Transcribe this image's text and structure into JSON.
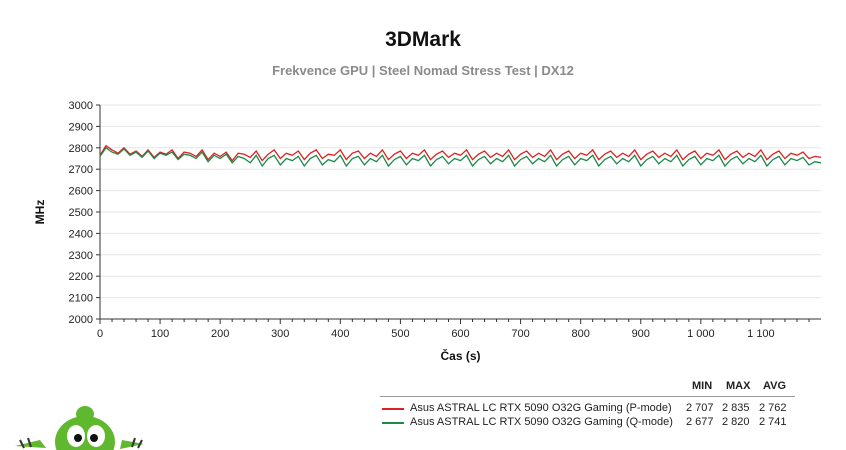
{
  "chart_data": {
    "type": "line",
    "title": "3DMark",
    "subtitle": "Frekvence GPU | Steel Nomad Stress Test | DX12",
    "xlabel": "Čas (s)",
    "ylabel": "MHz",
    "xlim": [
      0,
      1200
    ],
    "ylim": [
      2000,
      3000
    ],
    "xticks": [
      0,
      100,
      200,
      300,
      400,
      500,
      600,
      700,
      800,
      900,
      1000,
      1100
    ],
    "xtick_labels": [
      "0",
      "100",
      "200",
      "300",
      "400",
      "500",
      "600",
      "700",
      "800",
      "900",
      "1 000",
      "1 100"
    ],
    "yticks": [
      2000,
      2100,
      2200,
      2300,
      2400,
      2500,
      2600,
      2700,
      2800,
      2900,
      3000
    ],
    "grid": "horizontal",
    "legend_position": "bottom-right",
    "legend_headers": [
      "MIN",
      "MAX",
      "AVG"
    ],
    "series": [
      {
        "name": "Asus ASTRAL LC RTX 5090 O32G Gaming (P-mode)",
        "color": "#e02020",
        "min": "2 707",
        "max": "2 835",
        "avg": "2 762",
        "x": [
          0,
          10,
          20,
          30,
          40,
          50,
          60,
          70,
          80,
          90,
          100,
          110,
          120,
          130,
          140,
          150,
          160,
          170,
          180,
          190,
          200,
          210,
          220,
          230,
          240,
          250,
          260,
          270,
          280,
          290,
          300,
          310,
          320,
          330,
          340,
          350,
          360,
          370,
          380,
          390,
          400,
          410,
          420,
          430,
          440,
          450,
          460,
          470,
          480,
          490,
          500,
          510,
          520,
          530,
          540,
          550,
          560,
          570,
          580,
          590,
          600,
          610,
          620,
          630,
          640,
          650,
          660,
          670,
          680,
          690,
          700,
          710,
          720,
          730,
          740,
          750,
          760,
          770,
          780,
          790,
          800,
          810,
          820,
          830,
          840,
          850,
          860,
          870,
          880,
          890,
          900,
          910,
          920,
          930,
          940,
          950,
          960,
          970,
          980,
          990,
          1000,
          1010,
          1020,
          1030,
          1040,
          1050,
          1060,
          1070,
          1080,
          1090,
          1100,
          1110,
          1120,
          1130,
          1140,
          1150,
          1160,
          1170,
          1180,
          1190,
          1200
        ],
        "values": [
          2765,
          2810,
          2790,
          2775,
          2800,
          2770,
          2785,
          2760,
          2790,
          2755,
          2780,
          2770,
          2790,
          2750,
          2780,
          2775,
          2760,
          2790,
          2745,
          2775,
          2760,
          2780,
          2740,
          2775,
          2770,
          2755,
          2785,
          2740,
          2770,
          2790,
          2750,
          2775,
          2765,
          2785,
          2745,
          2775,
          2790,
          2750,
          2770,
          2765,
          2790,
          2745,
          2775,
          2785,
          2750,
          2775,
          2760,
          2790,
          2745,
          2770,
          2785,
          2750,
          2775,
          2765,
          2790,
          2745,
          2770,
          2785,
          2755,
          2775,
          2765,
          2790,
          2745,
          2770,
          2785,
          2755,
          2775,
          2760,
          2790,
          2745,
          2770,
          2785,
          2755,
          2775,
          2760,
          2790,
          2745,
          2770,
          2785,
          2750,
          2775,
          2765,
          2790,
          2745,
          2770,
          2785,
          2755,
          2775,
          2760,
          2790,
          2745,
          2770,
          2785,
          2755,
          2775,
          2760,
          2790,
          2745,
          2770,
          2785,
          2750,
          2775,
          2765,
          2790,
          2745,
          2770,
          2785,
          2755,
          2775,
          2760,
          2790,
          2745,
          2770,
          2785,
          2750,
          2775,
          2765,
          2780,
          2750,
          2760,
          2755
        ]
      },
      {
        "name": "Asus ASTRAL LC RTX 5090 O32G Gaming (Q-mode)",
        "color": "#1a8a4a",
        "min": "2 677",
        "max": "2 820",
        "avg": "2 741",
        "x": [
          0,
          10,
          20,
          30,
          40,
          50,
          60,
          70,
          80,
          90,
          100,
          110,
          120,
          130,
          140,
          150,
          160,
          170,
          180,
          190,
          200,
          210,
          220,
          230,
          240,
          250,
          260,
          270,
          280,
          290,
          300,
          310,
          320,
          330,
          340,
          350,
          360,
          370,
          380,
          390,
          400,
          410,
          420,
          430,
          440,
          450,
          460,
          470,
          480,
          490,
          500,
          510,
          520,
          530,
          540,
          550,
          560,
          570,
          580,
          590,
          600,
          610,
          620,
          630,
          640,
          650,
          660,
          670,
          680,
          690,
          700,
          710,
          720,
          730,
          740,
          750,
          760,
          770,
          780,
          790,
          800,
          810,
          820,
          830,
          840,
          850,
          860,
          870,
          880,
          890,
          900,
          910,
          920,
          930,
          940,
          950,
          960,
          970,
          980,
          990,
          1000,
          1010,
          1020,
          1030,
          1040,
          1050,
          1060,
          1070,
          1080,
          1090,
          1100,
          1110,
          1120,
          1130,
          1140,
          1150,
          1160,
          1170,
          1180,
          1190,
          1200
        ],
        "values": [
          2760,
          2800,
          2780,
          2770,
          2795,
          2765,
          2780,
          2755,
          2785,
          2750,
          2775,
          2765,
          2780,
          2745,
          2770,
          2765,
          2750,
          2780,
          2735,
          2765,
          2750,
          2770,
          2730,
          2760,
          2750,
          2730,
          2765,
          2715,
          2750,
          2765,
          2720,
          2750,
          2740,
          2760,
          2715,
          2750,
          2765,
          2720,
          2745,
          2735,
          2765,
          2715,
          2750,
          2760,
          2720,
          2750,
          2735,
          2765,
          2715,
          2745,
          2760,
          2720,
          2750,
          2740,
          2765,
          2715,
          2745,
          2760,
          2725,
          2750,
          2740,
          2765,
          2715,
          2745,
          2760,
          2725,
          2750,
          2735,
          2765,
          2715,
          2745,
          2760,
          2725,
          2750,
          2735,
          2765,
          2715,
          2745,
          2760,
          2720,
          2750,
          2740,
          2765,
          2715,
          2745,
          2760,
          2725,
          2750,
          2735,
          2765,
          2715,
          2745,
          2760,
          2725,
          2750,
          2735,
          2765,
          2715,
          2745,
          2760,
          2720,
          2750,
          2740,
          2765,
          2715,
          2745,
          2760,
          2725,
          2750,
          2735,
          2765,
          2715,
          2745,
          2760,
          2720,
          2750,
          2740,
          2755,
          2720,
          2735,
          2730
        ]
      }
    ]
  }
}
